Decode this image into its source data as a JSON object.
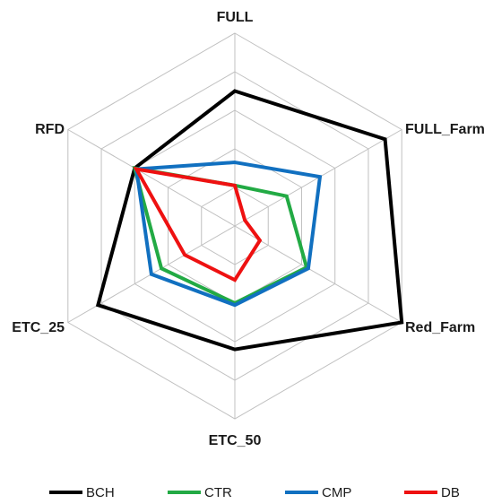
{
  "chart_data": {
    "type": "radar",
    "axes": [
      "FULL",
      "FULL_Farm",
      "Red_Farm",
      "ETC_50",
      "ETC_25",
      "RFD"
    ],
    "rlim": [
      0,
      5
    ],
    "grid": true,
    "legend_position": "bottom",
    "series": [
      {
        "name": "BCH",
        "color": "#000000",
        "values": [
          3.5,
          4.5,
          5.0,
          3.2,
          4.1,
          3.0
        ]
      },
      {
        "name": "CTR",
        "color": "#22aa44",
        "values": [
          1.05,
          1.55,
          2.15,
          2.0,
          2.2,
          3.0
        ]
      },
      {
        "name": "CMP",
        "color": "#1170c0",
        "values": [
          1.65,
          2.55,
          2.2,
          2.05,
          2.5,
          2.95
        ]
      },
      {
        "name": "DB",
        "color": "#ee1111",
        "values": [
          1.05,
          0.3,
          0.75,
          1.4,
          1.5,
          2.95
        ]
      }
    ]
  }
}
